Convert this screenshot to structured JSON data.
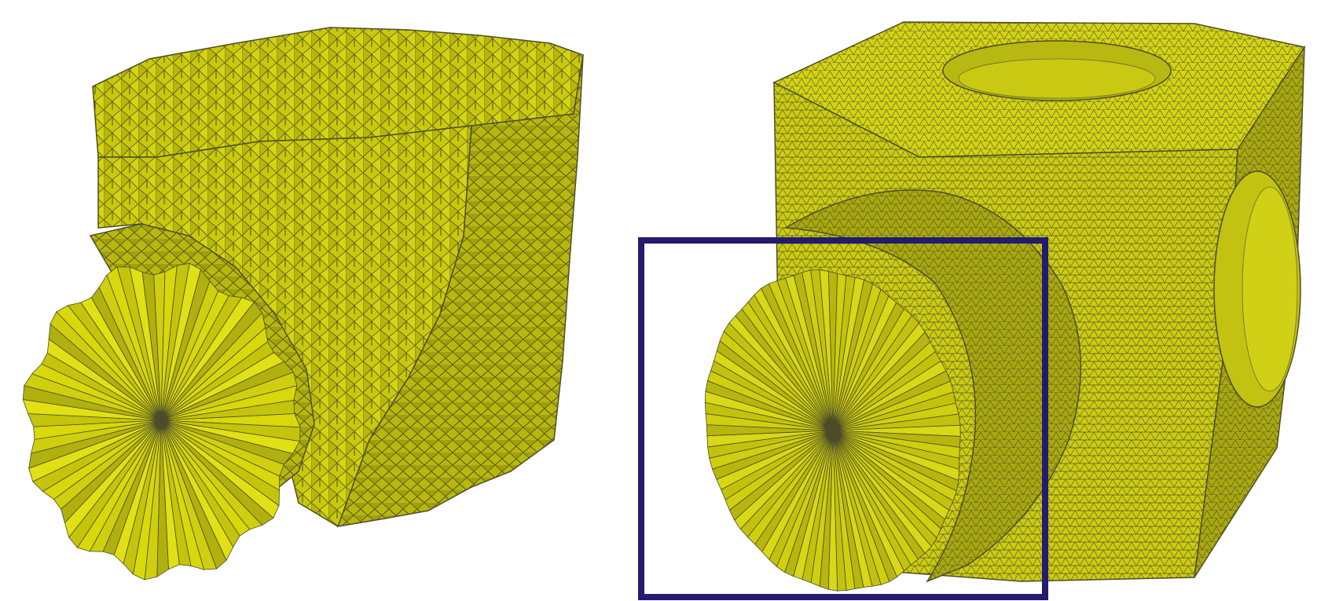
{
  "figure": {
    "panels": [
      {
        "name": "noisy-mesh",
        "description_shown": ""
      },
      {
        "name": "smooth-mesh",
        "description_shown": ""
      }
    ]
  },
  "colors": {
    "mesh_fill": "#d6d60a",
    "mesh_top": "#c8c810",
    "mesh_dark": "#9a9a08",
    "mesh_shadow": "#7a7a10",
    "edge": "#4d4d2a",
    "highlight_box": "#241a6e",
    "background": "#ffffff"
  },
  "icons": [
    "cube-mesh-icon",
    "cylinder-mesh-icon",
    "highlight-box"
  ]
}
